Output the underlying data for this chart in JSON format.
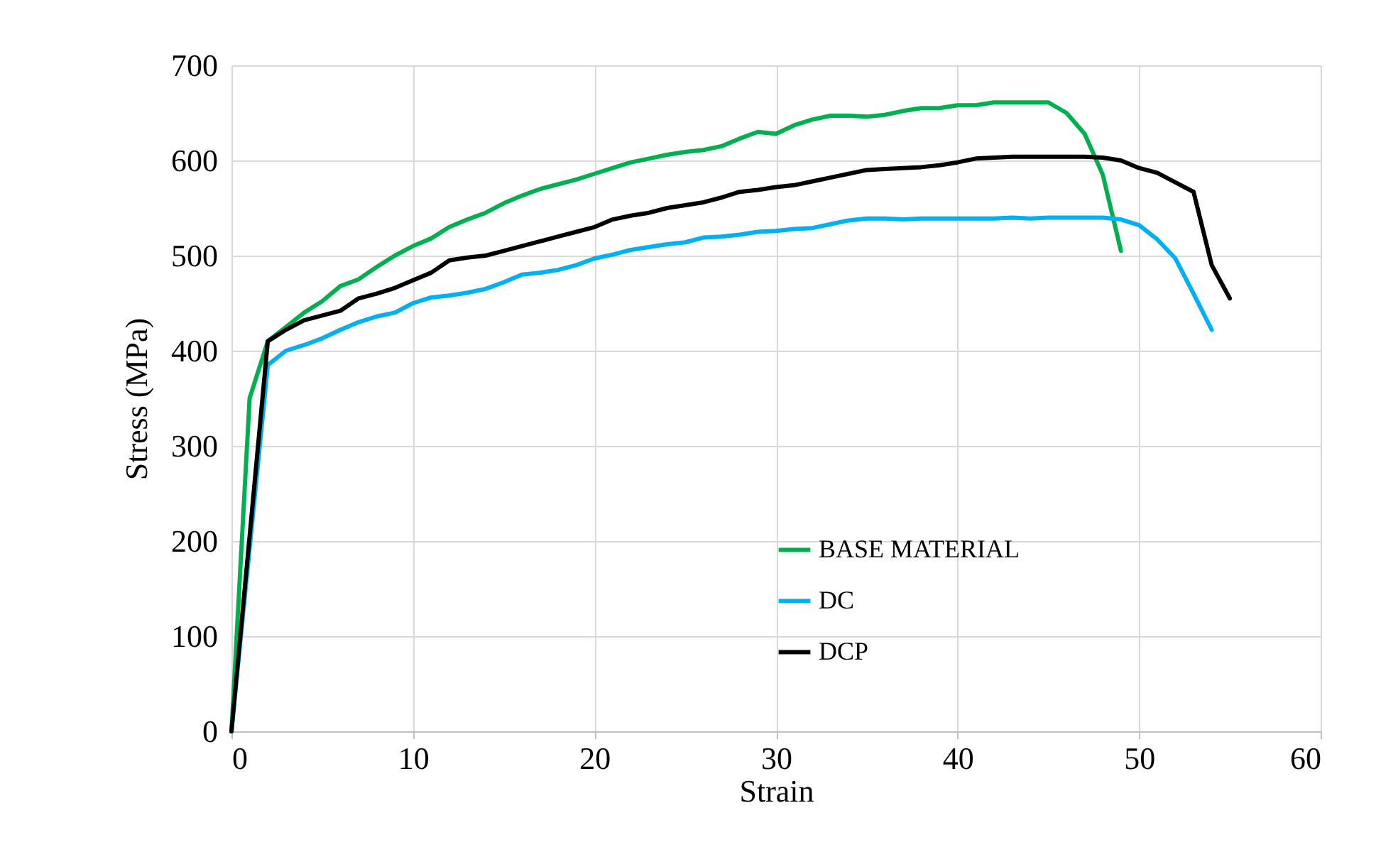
{
  "chart_data": {
    "type": "line",
    "xlabel": "Strain",
    "ylabel": "Stress (MPa)",
    "xlim": [
      0,
      60
    ],
    "xticks": [
      0,
      10,
      20,
      30,
      40,
      50,
      60
    ],
    "ylim": [
      0,
      700
    ],
    "yticks": [
      0,
      100,
      200,
      300,
      400,
      500,
      600,
      700
    ],
    "grid": true,
    "legend": "bottom right",
    "marker": "none",
    "line_style": "solid",
    "series": [
      {
        "name": "BASE MATERIAL",
        "color": "#00b050",
        "x": [
          0,
          1,
          2,
          3,
          4,
          5,
          6,
          7,
          8,
          9,
          10,
          11,
          12,
          13,
          14,
          15,
          16,
          17,
          18,
          19,
          20,
          21,
          22,
          23,
          24,
          25,
          26,
          27,
          28,
          29,
          30,
          31,
          32,
          33,
          34,
          35,
          36,
          37,
          38,
          39,
          40,
          41,
          42,
          43,
          44,
          45,
          46,
          47,
          48,
          49
        ],
        "values": [
          0,
          350,
          410,
          425,
          440,
          452,
          468,
          475,
          488,
          500,
          510,
          518,
          530,
          538,
          545,
          555,
          563,
          570,
          575,
          580,
          586,
          592,
          598,
          602,
          606,
          609,
          611,
          615,
          623,
          630,
          628,
          637,
          643,
          647,
          647,
          646,
          648,
          652,
          655,
          655,
          658,
          658,
          661,
          661,
          661,
          661,
          650,
          628,
          585,
          505
        ]
      },
      {
        "name": "DC",
        "color": "#00b0f0",
        "x": [
          0,
          2,
          3,
          4,
          5,
          6,
          7,
          8,
          9,
          10,
          11,
          12,
          13,
          14,
          15,
          16,
          17,
          18,
          19,
          20,
          21,
          22,
          23,
          24,
          25,
          26,
          27,
          28,
          29,
          30,
          31,
          32,
          33,
          34,
          35,
          36,
          37,
          38,
          39,
          40,
          41,
          42,
          43,
          44,
          45,
          46,
          47,
          48,
          49,
          50,
          51,
          52,
          53,
          54
        ],
        "values": [
          0,
          385,
          400,
          406,
          413,
          422,
          430,
          436,
          440,
          450,
          456,
          458,
          461,
          465,
          472,
          480,
          482,
          485,
          490,
          497,
          501,
          506,
          509,
          512,
          514,
          519,
          520,
          522,
          525,
          526,
          528,
          529,
          533,
          537,
          539,
          539,
          538,
          539,
          539,
          539,
          539,
          539,
          540,
          539,
          540,
          540,
          540,
          540,
          538,
          532,
          517,
          497,
          460,
          422
        ]
      },
      {
        "name": "DCP",
        "color": "#000000",
        "x": [
          0,
          2,
          3,
          4,
          5,
          6,
          7,
          8,
          9,
          10,
          11,
          12,
          13,
          14,
          15,
          16,
          17,
          18,
          19,
          20,
          21,
          22,
          23,
          24,
          25,
          26,
          27,
          28,
          29,
          30,
          31,
          32,
          33,
          34,
          35,
          36,
          37,
          38,
          39,
          40,
          41,
          42,
          43,
          44,
          45,
          46,
          47,
          48,
          49,
          50,
          51,
          52,
          53,
          54,
          55
        ],
        "values": [
          0,
          410,
          422,
          432,
          437,
          442,
          455,
          460,
          466,
          474,
          482,
          495,
          498,
          500,
          505,
          510,
          515,
          520,
          525,
          530,
          538,
          542,
          545,
          550,
          553,
          556,
          561,
          567,
          569,
          572,
          574,
          578,
          582,
          586,
          590,
          591,
          592,
          593,
          595,
          598,
          602,
          603,
          604,
          604,
          604,
          604,
          604,
          603,
          600,
          592,
          587,
          577,
          567,
          490,
          455
        ]
      }
    ]
  }
}
